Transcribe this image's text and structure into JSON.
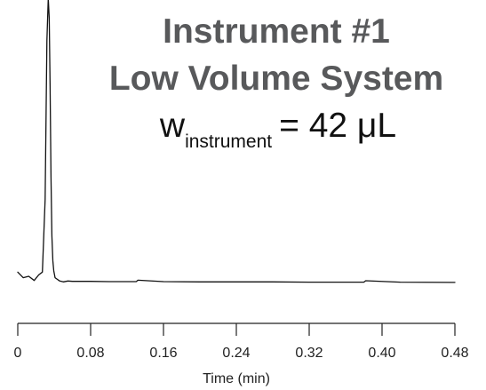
{
  "chart_data": {
    "type": "line",
    "title": [
      "Instrument #1",
      "Low Volume System"
    ],
    "annotation": {
      "symbol": "w",
      "subscript": "instrument",
      "value_text": "= 42 μL"
    },
    "xlabel": "Time (min)",
    "ylabel": "",
    "xlim": [
      0,
      0.48
    ],
    "ylim": [
      -0.03,
      1.0
    ],
    "xticks": [
      0,
      0.08,
      0.16,
      0.24,
      0.32,
      0.4,
      0.48
    ],
    "xtick_labels": [
      "0",
      "0.08",
      "0.16",
      "0.24",
      "0.32",
      "0.40",
      "0.48"
    ],
    "grid": false,
    "series": [
      {
        "color": "#111111",
        "x": [
          0,
          0.006,
          0.012,
          0.018,
          0.023,
          0.027,
          0.03,
          0.032,
          0.0335,
          0.0345,
          0.0355,
          0.0365,
          0.0375,
          0.0385,
          0.0395,
          0.041,
          0.043,
          0.046,
          0.05,
          0.055,
          0.06,
          0.08,
          0.1,
          0.12,
          0.13,
          0.132,
          0.16,
          0.2,
          0.24,
          0.28,
          0.32,
          0.36,
          0.38,
          0.382,
          0.42,
          0.48
        ],
        "y": [
          0.02,
          0.0,
          0.005,
          -0.01,
          0.01,
          0.02,
          0.28,
          0.85,
          1.0,
          0.93,
          0.68,
          0.36,
          0.15,
          0.06,
          0.025,
          0.0,
          -0.005,
          -0.012,
          -0.015,
          -0.012,
          -0.013,
          -0.013,
          -0.014,
          -0.014,
          -0.014,
          -0.009,
          -0.014,
          -0.015,
          -0.015,
          -0.015,
          -0.016,
          -0.016,
          -0.016,
          -0.011,
          -0.016,
          -0.017
        ]
      }
    ]
  }
}
